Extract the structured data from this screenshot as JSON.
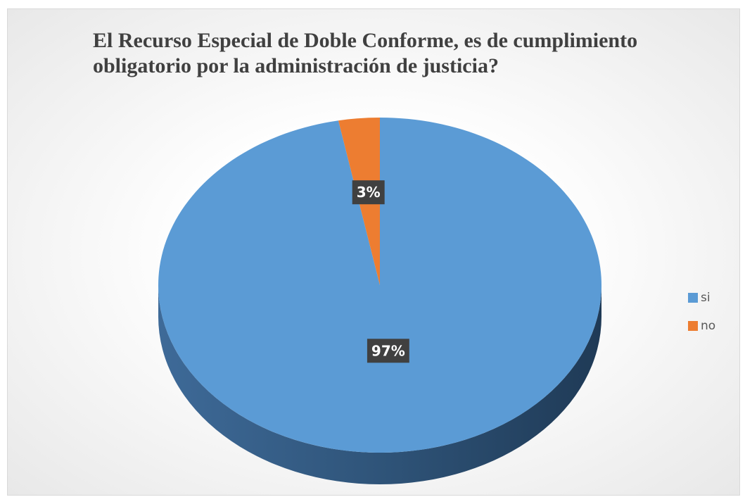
{
  "chart_data": {
    "type": "pie",
    "title": "El Recurso Especial de Doble Conforme, es de cumplimiento obligatorio por la administración de justicia?",
    "categories": [
      "si",
      "no"
    ],
    "values": [
      97,
      3
    ],
    "value_labels": [
      "97%",
      "3%"
    ],
    "colors": [
      "#5b9bd5",
      "#ed7d31"
    ],
    "legend": "right"
  }
}
